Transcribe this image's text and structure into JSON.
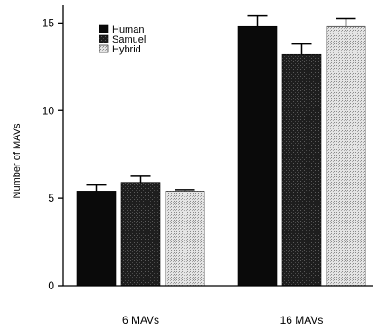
{
  "chart_data": {
    "type": "bar",
    "categories": [
      "6 MAVs",
      "16 MAVs"
    ],
    "series": [
      {
        "name": "Human",
        "values": [
          5.4,
          14.8
        ],
        "errors": [
          0.35,
          0.6
        ],
        "fill": "solid-black"
      },
      {
        "name": "Samuel",
        "values": [
          5.9,
          13.2
        ],
        "errors": [
          0.35,
          0.6
        ],
        "fill": "dark-stipple"
      },
      {
        "name": "Hybrid",
        "values": [
          5.4,
          14.8
        ],
        "errors": [
          0.08,
          0.45
        ],
        "fill": "light-stipple"
      }
    ],
    "ylabel": "Number of MAVs",
    "xlabel": "",
    "ylim": [
      0,
      16
    ],
    "yticks": [
      0,
      5,
      10,
      15
    ],
    "grid": false,
    "legend_position": "top-left",
    "colors": {
      "bar_dark": "#0a0a0a",
      "bar_mid": "#333333",
      "bar_light": "#cfcfcf",
      "axis": "#000000"
    }
  }
}
